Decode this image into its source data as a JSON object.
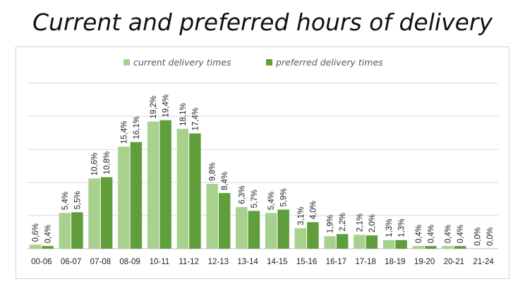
{
  "chart_data": {
    "type": "bar",
    "title": "Current and preferred hours of  delivery",
    "categories": [
      "00-06",
      "06-07",
      "07-08",
      "08-09",
      "10-11",
      "11-12",
      "12-13",
      "13-14",
      "14-15",
      "15-16",
      "16-17",
      "17-18",
      "18-19",
      "19-20",
      "20-21",
      "21-24"
    ],
    "series": [
      {
        "name": "current delivery times",
        "color": "#a9d18e",
        "values": [
          0.6,
          5.4,
          10.6,
          15.4,
          19.2,
          18.1,
          9.8,
          6.3,
          5.4,
          3.1,
          1.9,
          2.1,
          1.3,
          0.4,
          0.4,
          0.0
        ],
        "labels": [
          "0,6%",
          "5,4%",
          "10,6%",
          "15,4%",
          "19,2%",
          "18,1%",
          "9,8%",
          "6,3%",
          "5,4%",
          "3,1%",
          "1,9%",
          "2,1%",
          "1,3%",
          "0,4%",
          "0,4%",
          "0,0%"
        ]
      },
      {
        "name": "preferred delivery times",
        "color": "#5f9e3a",
        "values": [
          0.4,
          5.5,
          10.8,
          16.1,
          19.4,
          17.4,
          8.4,
          5.7,
          5.9,
          4.0,
          2.2,
          2.0,
          1.3,
          0.4,
          0.4,
          0.0
        ],
        "labels": [
          "0,4%",
          "5,5%",
          "10,8%",
          "16,1%",
          "19,4%",
          "17,4%",
          "8,4%",
          "5,7%",
          "5,9%",
          "4,0%",
          "2,2%",
          "2,0%",
          "1,3%",
          "0,4%",
          "0,4%",
          "0,0%"
        ]
      }
    ],
    "ylim": [
      0,
      25
    ],
    "grid": true,
    "legend_position": "top"
  }
}
